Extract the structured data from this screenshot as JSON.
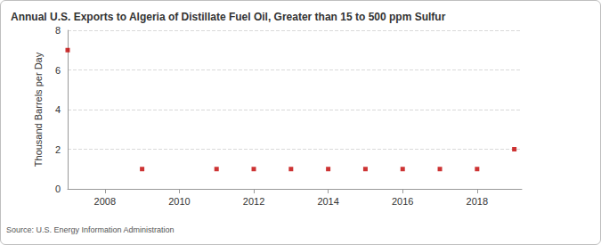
{
  "chart_data": {
    "type": "scatter",
    "title": "Annual U.S. Exports to Algeria of Distillate Fuel Oil, Greater than 15 to 500 ppm Sulfur",
    "y_label": "Thousand Barrels per Day",
    "source": "Source: U.S. Energy Information Administration",
    "x": [
      2007,
      2009,
      2011,
      2012,
      2013,
      2014,
      2015,
      2016,
      2017,
      2018,
      2019
    ],
    "values": [
      7,
      1,
      1,
      1,
      1,
      1,
      1,
      1,
      1,
      1,
      2
    ],
    "color": "#c00000",
    "marker": "square",
    "xlim": [
      2007,
      2019.2
    ],
    "xticks": [
      2008,
      2010,
      2012,
      2014,
      2016,
      2018
    ],
    "ylim": [
      0,
      8
    ],
    "yticks": [
      0,
      2,
      4,
      6,
      8
    ],
    "grid": true
  }
}
